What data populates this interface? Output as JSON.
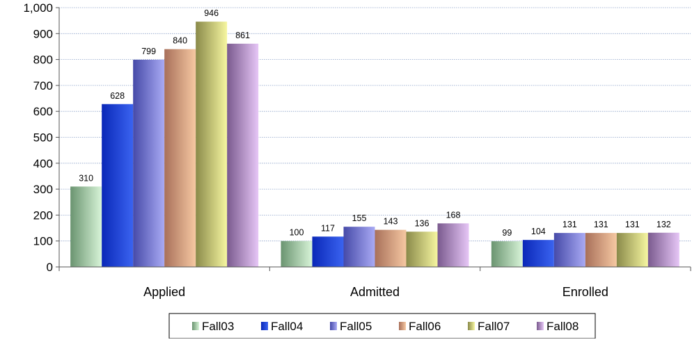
{
  "chart_data": {
    "type": "bar",
    "title": "",
    "xlabel": "",
    "ylabel": "",
    "ylim": [
      0,
      1000
    ],
    "yticks": [
      0,
      100,
      200,
      300,
      400,
      500,
      600,
      700,
      800,
      900,
      1000
    ],
    "ytick_labels": [
      "0",
      "100",
      "200",
      "300",
      "400",
      "500",
      "600",
      "700",
      "800",
      "900",
      "1,000"
    ],
    "grid": "horizontal-dotted",
    "legend_position": "bottom",
    "categories": [
      "Applied",
      "Admitted",
      "Enrolled"
    ],
    "series": [
      {
        "name": "Fall03",
        "values": [
          310,
          100,
          99
        ],
        "color_light": "#d8f4d8",
        "color_dark": "#6a9470"
      },
      {
        "name": "Fall04",
        "values": [
          628,
          117,
          104
        ],
        "color_light": "#3a63f0",
        "color_dark": "#0a28b8"
      },
      {
        "name": "Fall05",
        "values": [
          799,
          155,
          131
        ],
        "color_light": "#a9aaf4",
        "color_dark": "#464aa8"
      },
      {
        "name": "Fall06",
        "values": [
          840,
          143,
          131
        ],
        "color_light": "#f6c8a2",
        "color_dark": "#a8705a"
      },
      {
        "name": "Fall07",
        "values": [
          946,
          136,
          131
        ],
        "color_light": "#f6f6a0",
        "color_dark": "#8a8a4a"
      },
      {
        "name": "Fall08",
        "values": [
          861,
          168,
          132
        ],
        "color_light": "#e6c6f6",
        "color_dark": "#7a5a8e"
      }
    ]
  }
}
